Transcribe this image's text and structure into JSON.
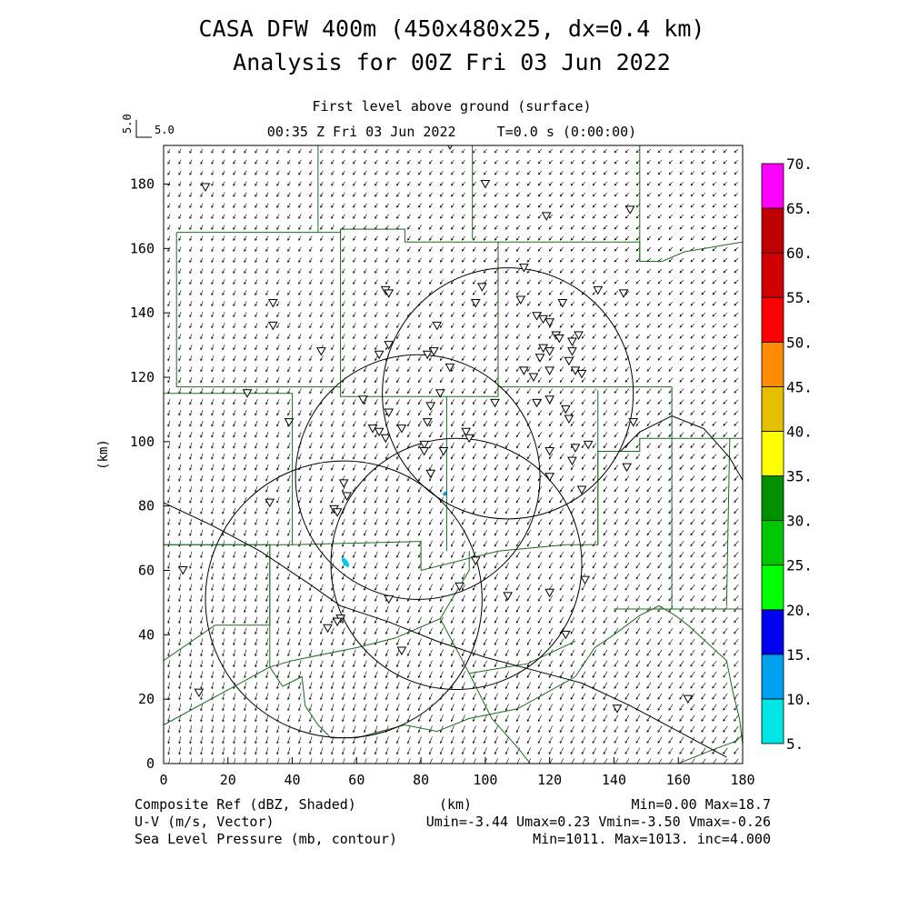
{
  "chart_data": {
    "type": "heatmap",
    "title": "CASA DFW 400m (450x480x25, dx=0.4 km)",
    "subtitle": "Analysis for 00Z Fri 03 Jun 2022",
    "level_label": "First level above ground (surface)",
    "time_label": "00:35 Z Fri 03 Jun 2022     T=0.0 s (0:00:00)",
    "vector_scale_label": "5.0",
    "vector_scale_value": "5.0",
    "xlabel": "(km)",
    "ylabel": "(km)",
    "xlim": [
      0,
      180
    ],
    "ylim": [
      0,
      192
    ],
    "x_ticks": [
      "0",
      "20",
      "40",
      "60",
      "80",
      "100",
      "120",
      "140",
      "160",
      "180"
    ],
    "y_ticks": [
      "0",
      "20",
      "40",
      "60",
      "80",
      "100",
      "120",
      "140",
      "160",
      "180"
    ],
    "colorbar": {
      "levels": [
        "5.",
        "10.",
        "15.",
        "20.",
        "25.",
        "30.",
        "35.",
        "40.",
        "45.",
        "50.",
        "55.",
        "60.",
        "65.",
        "70."
      ],
      "colors": [
        "#00e6e6",
        "#00a0f0",
        "#0000f0",
        "#00ff00",
        "#00c800",
        "#009000",
        "#ffff00",
        "#e6c000",
        "#ff8c00",
        "#ff0000",
        "#d00000",
        "#c00000",
        "#ff00ff"
      ]
    },
    "footer": {
      "left1": "Composite Ref (dBZ, Shaded)",
      "left2": "U-V (m/s, Vector)",
      "left3": "Sea Level Pressure (mb, contour)",
      "center1": "(km)",
      "right1": "Min=0.00 Max=18.7",
      "right2": "Umin=-3.44 Umax=0.23 Vmin=-3.50 Vmax=-0.26",
      "right3": "Min=1011. Max=1013. inc=4.000"
    },
    "radar_rings_km": [
      {
        "cx": 107,
        "cy": 115,
        "r": 39
      },
      {
        "cx": 79,
        "cy": 89,
        "r": 38
      },
      {
        "cx": 91,
        "cy": 62,
        "r": 39
      },
      {
        "cx": 56,
        "cy": 51,
        "r": 43
      }
    ],
    "reflectivity_echoes_km": [
      {
        "x": 87.5,
        "y": 83.8,
        "w": 1.5,
        "h": 1.2,
        "color": "#00a0f0"
      },
      {
        "x": 56.5,
        "y": 62.5,
        "w": 1.5,
        "h": 3.5,
        "color": "#00c8f0"
      }
    ],
    "pressure_contours_km": [
      [
        [
          0,
          81
        ],
        [
          15,
          74
        ],
        [
          30,
          66
        ],
        [
          45,
          56
        ],
        [
          55,
          49
        ],
        [
          70,
          44
        ],
        [
          85,
          38
        ],
        [
          100,
          33
        ],
        [
          115,
          29
        ],
        [
          130,
          25
        ],
        [
          145,
          18
        ],
        [
          160,
          10
        ],
        [
          175,
          2
        ]
      ],
      [
        [
          142,
          97
        ],
        [
          148,
          103
        ],
        [
          158,
          108
        ],
        [
          168,
          104
        ],
        [
          176,
          95
        ],
        [
          180,
          88
        ]
      ]
    ],
    "stations_km": [
      [
        13,
        179
      ],
      [
        89,
        192
      ],
      [
        100,
        180
      ],
      [
        119,
        170
      ],
      [
        145,
        172
      ],
      [
        112,
        154
      ],
      [
        99,
        148
      ],
      [
        69,
        147
      ],
      [
        70,
        146
      ],
      [
        135,
        147
      ],
      [
        143,
        146
      ],
      [
        34,
        143
      ],
      [
        111,
        144
      ],
      [
        97,
        143
      ],
      [
        124,
        143
      ],
      [
        116,
        139
      ],
      [
        118,
        138
      ],
      [
        120,
        137
      ],
      [
        85,
        136
      ],
      [
        34,
        136
      ],
      [
        122,
        133
      ],
      [
        123,
        132
      ],
      [
        129,
        133
      ],
      [
        127,
        131
      ],
      [
        118,
        129
      ],
      [
        120,
        128
      ],
      [
        49,
        128
      ],
      [
        70,
        130
      ],
      [
        67,
        127
      ],
      [
        82,
        127
      ],
      [
        84,
        128
      ],
      [
        127,
        128
      ],
      [
        126,
        125
      ],
      [
        117,
        126
      ],
      [
        89,
        123
      ],
      [
        112,
        122
      ],
      [
        115,
        120
      ],
      [
        120,
        122
      ],
      [
        128,
        122
      ],
      [
        130,
        121
      ],
      [
        86,
        115
      ],
      [
        26,
        115
      ],
      [
        62,
        113
      ],
      [
        83,
        111
      ],
      [
        103,
        112
      ],
      [
        116,
        112
      ],
      [
        120,
        113
      ],
      [
        125,
        110
      ],
      [
        126,
        107
      ],
      [
        70,
        109
      ],
      [
        82,
        106
      ],
      [
        65,
        104
      ],
      [
        74,
        104
      ],
      [
        67,
        103
      ],
      [
        39,
        106
      ],
      [
        146,
        106
      ],
      [
        94,
        103
      ],
      [
        95,
        101
      ],
      [
        69,
        101
      ],
      [
        128,
        98
      ],
      [
        132,
        99
      ],
      [
        81,
        99
      ],
      [
        81,
        97
      ],
      [
        87,
        97
      ],
      [
        120,
        97
      ],
      [
        127,
        94
      ],
      [
        83,
        90
      ],
      [
        144,
        92
      ],
      [
        120,
        89
      ],
      [
        130,
        85
      ],
      [
        56,
        87
      ],
      [
        57,
        83
      ],
      [
        33,
        81
      ],
      [
        53,
        79
      ],
      [
        54,
        78
      ],
      [
        6,
        60
      ],
      [
        97,
        63
      ],
      [
        131,
        57
      ],
      [
        92,
        55
      ],
      [
        107,
        52
      ],
      [
        120,
        53
      ],
      [
        70,
        51
      ],
      [
        55,
        45
      ],
      [
        54,
        44
      ],
      [
        51,
        42
      ],
      [
        125,
        40
      ],
      [
        74,
        35
      ],
      [
        11,
        22
      ],
      [
        141,
        17
      ],
      [
        163,
        20
      ]
    ],
    "boundaries_km": [
      [
        [
          4,
          165
        ],
        [
          55,
          165
        ],
        [
          55,
          166
        ],
        [
          75,
          166
        ],
        [
          75,
          162
        ],
        [
          125,
          162
        ],
        [
          148,
          162
        ],
        [
          148,
          156
        ]
      ],
      [
        [
          48,
          192
        ],
        [
          48,
          165
        ]
      ],
      [
        [
          96,
          192
        ],
        [
          96,
          163
        ]
      ],
      [
        [
          148,
          192
        ],
        [
          148,
          156
        ],
        [
          155,
          156
        ],
        [
          162,
          159
        ],
        [
          180,
          162
        ]
      ],
      [
        [
          4,
          165
        ],
        [
          4,
          117
        ],
        [
          55,
          117
        ],
        [
          55,
          114
        ],
        [
          104,
          114
        ],
        [
          104,
          162
        ]
      ],
      [
        [
          55,
          166
        ],
        [
          55,
          117
        ]
      ],
      [
        [
          104,
          117
        ],
        [
          125,
          117
        ],
        [
          158,
          117
        ],
        [
          158,
          101
        ],
        [
          180,
          101
        ]
      ],
      [
        [
          0,
          115
        ],
        [
          40,
          115
        ],
        [
          40,
          68
        ],
        [
          0,
          68
        ]
      ],
      [
        [
          40,
          68
        ],
        [
          80,
          69
        ],
        [
          80,
          60
        ],
        [
          104,
          66
        ],
        [
          125,
          68
        ],
        [
          135,
          68
        ],
        [
          135,
          116
        ]
      ],
      [
        [
          88,
          114
        ],
        [
          88,
          66
        ]
      ],
      [
        [
          135,
          68
        ],
        [
          135,
          97
        ],
        [
          148,
          97
        ],
        [
          148,
          101
        ],
        [
          158,
          101
        ]
      ],
      [
        [
          0,
          68
        ],
        [
          33,
          68
        ],
        [
          33,
          43
        ],
        [
          16,
          43
        ],
        [
          0,
          32
        ]
      ],
      [
        [
          0,
          12
        ],
        [
          33,
          30
        ],
        [
          37,
          24
        ],
        [
          43,
          27
        ],
        [
          44,
          18
        ],
        [
          48,
          12
        ],
        [
          52,
          8
        ],
        [
          60,
          8
        ],
        [
          75,
          12
        ],
        [
          85,
          10
        ],
        [
          95,
          14
        ],
        [
          110,
          17
        ],
        [
          128,
          27
        ],
        [
          134,
          36
        ],
        [
          140,
          40
        ],
        [
          148,
          46
        ],
        [
          154,
          49
        ],
        [
          159,
          46
        ],
        [
          163,
          43
        ],
        [
          175,
          32
        ],
        [
          177,
          22
        ],
        [
          179,
          14
        ],
        [
          180,
          6
        ]
      ],
      [
        [
          33,
          68
        ],
        [
          33,
          30
        ]
      ],
      [
        [
          33,
          30
        ],
        [
          40,
          32
        ],
        [
          60,
          36
        ],
        [
          72,
          39
        ],
        [
          86,
          45
        ],
        [
          95,
          60
        ],
        [
          95,
          66
        ]
      ],
      [
        [
          86,
          45
        ],
        [
          95,
          28
        ],
        [
          102,
          14
        ],
        [
          110,
          5
        ],
        [
          114,
          0
        ]
      ],
      [
        [
          95,
          28
        ],
        [
          113,
          31
        ],
        [
          128,
          38
        ]
      ],
      [
        [
          140,
          48
        ],
        [
          150,
          48
        ],
        [
          158,
          48
        ],
        [
          180,
          48
        ]
      ],
      [
        [
          158,
          101
        ],
        [
          158,
          48
        ]
      ],
      [
        [
          175,
          49
        ],
        [
          176,
          101
        ]
      ],
      [
        [
          160,
          0
        ],
        [
          170,
          4
        ],
        [
          178,
          7
        ],
        [
          180,
          9
        ]
      ]
    ]
  }
}
